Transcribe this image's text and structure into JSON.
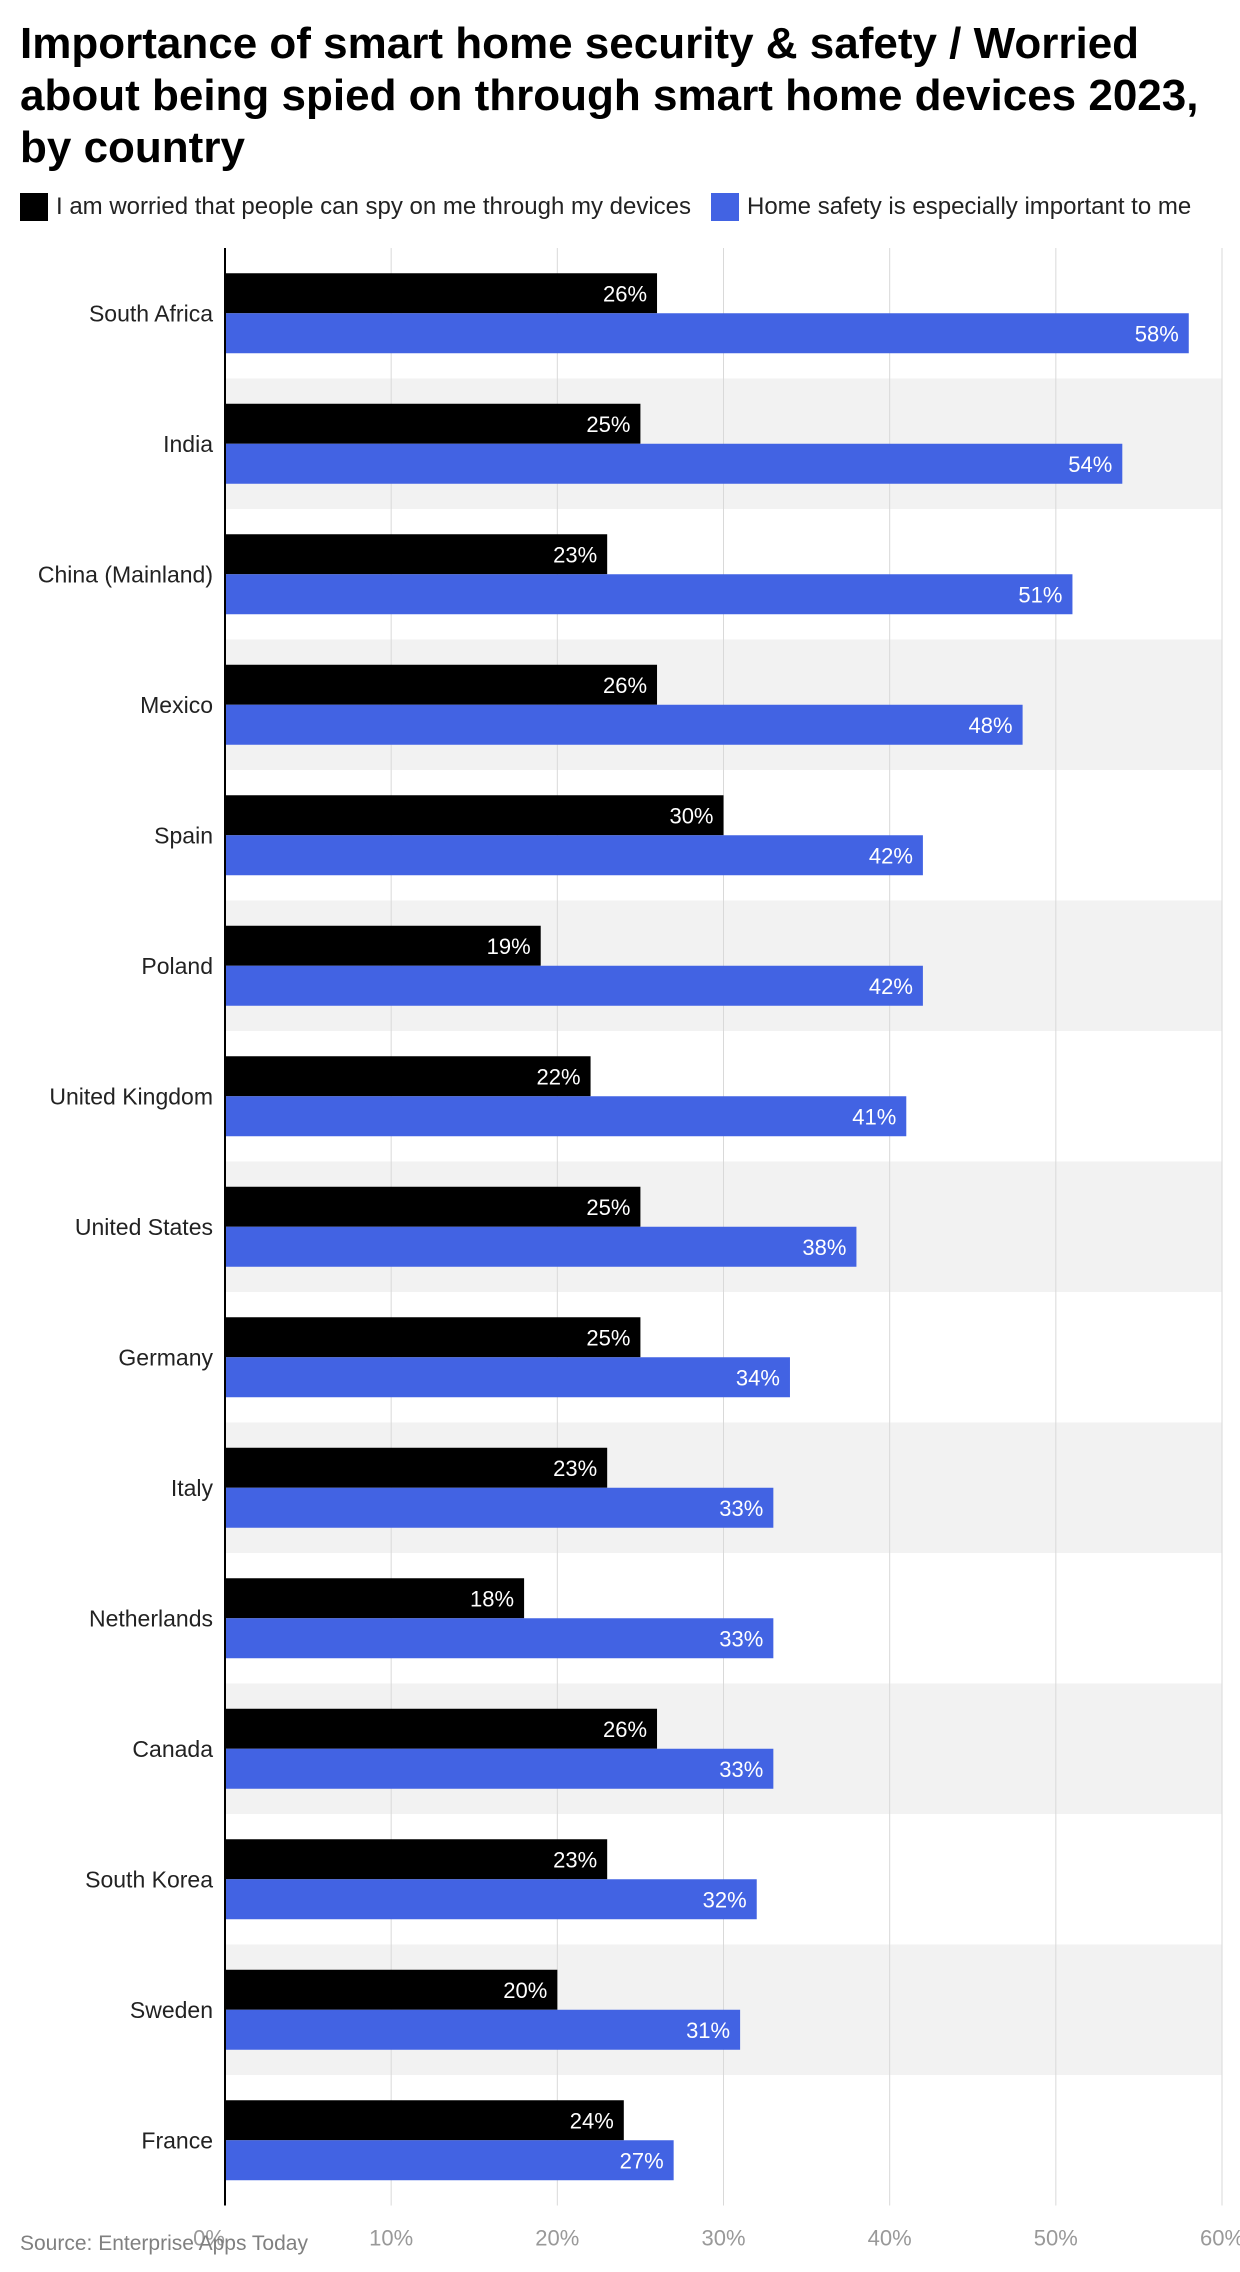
{
  "chart_data": {
    "type": "bar",
    "orientation": "horizontal",
    "title": "Importance of smart home security & safety / Worried about being spied on through smart home devices 2023, by country",
    "categories": [
      "South Africa",
      "India",
      "China (Mainland)",
      "Mexico",
      "Spain",
      "Poland",
      "United Kingdom",
      "United States",
      "Germany",
      "Italy",
      "Netherlands",
      "Canada",
      "South Korea",
      "Sweden",
      "France"
    ],
    "series": [
      {
        "name": "I am worried that people can spy on me through my devices",
        "color": "#000000",
        "values": [
          26,
          25,
          23,
          26,
          30,
          19,
          22,
          25,
          25,
          23,
          18,
          26,
          23,
          20,
          24
        ]
      },
      {
        "name": "Home safety is especially important to me",
        "color": "#4263e3",
        "values": [
          58,
          54,
          51,
          48,
          42,
          42,
          41,
          38,
          34,
          33,
          33,
          33,
          32,
          31,
          27
        ]
      }
    ],
    "x_ticks": [
      "0%",
      "10%",
      "20%",
      "30%",
      "40%",
      "50%",
      "60%"
    ],
    "xlim": [
      0,
      60
    ],
    "value_suffix": "%",
    "grid": true,
    "legend_position": "top-left",
    "xlabel": "",
    "ylabel": ""
  },
  "source": "Source: Enterprise Apps Today"
}
